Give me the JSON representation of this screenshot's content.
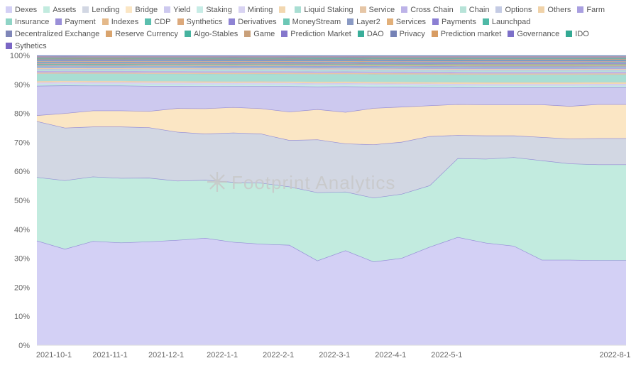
{
  "watermark": "Footprint Analytics",
  "chart_data": {
    "type": "area",
    "stacked": true,
    "percent": true,
    "legend_position": "top",
    "grid": false,
    "ylim": [
      0,
      100
    ],
    "y_ticks": [
      "0%",
      "10%",
      "20%",
      "30%",
      "40%",
      "50%",
      "60%",
      "70%",
      "80%",
      "90%",
      "100%"
    ],
    "x": [
      "2021-10-1",
      "2021-10-15",
      "2021-11-1",
      "2021-11-15",
      "2021-12-1",
      "2021-12-15",
      "2022-1-1",
      "2022-1-15",
      "2022-2-1",
      "2022-2-15",
      "2022-3-1",
      "2022-3-15",
      "2022-4-1",
      "2022-4-15",
      "2022-5-1",
      "2022-5-15",
      "2022-6-1",
      "2022-6-15",
      "2022-7-1",
      "2022-7-15",
      "2022-8-1",
      "2022-8-15"
    ],
    "x_ticks": [
      "2021-10-1",
      "2021-11-1",
      "2021-12-1",
      "2022-1-1",
      "2022-2-1",
      "2022-3-1",
      "2022-4-1",
      "2022-5-1",
      "2022-8-1"
    ],
    "series": [
      {
        "name": "Dexes",
        "color": "#d3d0f5",
        "values": [
          35.5,
          33,
          35.5,
          35,
          35,
          35.5,
          36,
          34.5,
          34,
          33.5,
          28,
          31.5,
          27.5,
          28.5,
          32,
          35,
          33,
          32,
          27.5,
          27.5,
          27.5,
          27.5
        ]
      },
      {
        "name": "Assets",
        "color": "#c2ebdf",
        "values": [
          21.5,
          23.5,
          22,
          22,
          21.5,
          20,
          19.5,
          20,
          20.5,
          19.5,
          22.5,
          19.5,
          21,
          21,
          20,
          25.5,
          27,
          28.5,
          32,
          31,
          31,
          31
        ]
      },
      {
        "name": "Lending",
        "color": "#d2d7e3",
        "values": [
          19,
          18,
          17,
          17.5,
          17,
          16.5,
          15.5,
          16.5,
          16.5,
          15.5,
          17.5,
          16,
          17.5,
          17,
          16,
          7.5,
          7.5,
          7,
          7.5,
          8,
          8.5,
          8.5
        ]
      },
      {
        "name": "Bridge",
        "color": "#fbe6c4",
        "values": [
          2,
          5,
          5.5,
          5.5,
          5.5,
          8,
          8.5,
          8.5,
          8.5,
          9.5,
          10,
          10.5,
          12,
          11.5,
          10,
          10,
          10,
          10,
          10.5,
          10.5,
          11,
          11
        ]
      },
      {
        "name": "Yield",
        "color": "#cdc9ef",
        "values": [
          10,
          9.5,
          8.5,
          8.5,
          8.5,
          7.5,
          7.5,
          7,
          7.5,
          8.5,
          7.5,
          8.5,
          7,
          6.5,
          6,
          5.5,
          5.5,
          5.5,
          5.5,
          6,
          5.5,
          5.5
        ]
      },
      {
        "name": "Staking",
        "color": "#c7ece6",
        "values": [
          0.6,
          0.6,
          0.6,
          0.6,
          0.6,
          0.6,
          0.6,
          0.6,
          0.6,
          0.6,
          0.6,
          0.6,
          0.6,
          0.6,
          0.6,
          0.6,
          0.6,
          0.6,
          0.6,
          0.6,
          0.6,
          0.6
        ]
      },
      {
        "name": "Minting",
        "color": "#d8d3f2",
        "values": [
          0.5,
          0.5,
          0.5,
          0.5,
          0.5,
          0.5,
          0.5,
          0.5,
          0.5,
          0.5,
          0.5,
          0.5,
          0.5,
          0.5,
          0.5,
          0.5,
          0.5,
          0.5,
          0.5,
          0.5,
          0.5,
          0.5
        ]
      },
      {
        "name": "",
        "color": "#f2d7b0",
        "values": [
          0.5,
          0.5,
          0.5,
          0.5,
          0.5,
          0.5,
          0.5,
          0.5,
          0.5,
          0.5,
          0.5,
          0.5,
          0.5,
          0.5,
          0.5,
          0.5,
          0.5,
          0.5,
          0.5,
          0.5,
          0.5,
          0.5
        ]
      },
      {
        "name": "Liquid Staking",
        "color": "#a9ded3",
        "values": [
          2.5,
          2.5,
          2.5,
          2.5,
          2.5,
          2.5,
          2.5,
          2.5,
          2.5,
          2.5,
          2.5,
          2.5,
          2.5,
          2.5,
          2.5,
          2.5,
          2.5,
          2.5,
          2.5,
          2.5,
          2.5,
          2.5
        ]
      },
      {
        "name": "Service",
        "color": "#e6c6a6",
        "values": [
          0.4,
          0.4,
          0.4,
          0.4,
          0.4,
          0.4,
          0.4,
          0.4,
          0.4,
          0.4,
          0.4,
          0.4,
          0.4,
          0.4,
          0.4,
          0.4,
          0.4,
          0.4,
          0.4,
          0.4,
          0.4,
          0.4
        ]
      },
      {
        "name": "Cross Chain",
        "color": "#bdb3e8",
        "values": [
          0.5,
          0.5,
          0.5,
          0.5,
          0.5,
          0.5,
          0.5,
          0.5,
          0.5,
          0.5,
          0.5,
          0.5,
          0.5,
          0.5,
          0.5,
          0.5,
          0.5,
          0.5,
          0.5,
          0.5,
          0.5,
          0.5
        ]
      },
      {
        "name": "Chain",
        "color": "#b7e3d8",
        "values": [
          0.4,
          0.4,
          0.4,
          0.4,
          0.4,
          0.4,
          0.4,
          0.4,
          0.4,
          0.4,
          0.4,
          0.4,
          0.4,
          0.4,
          0.4,
          0.4,
          0.4,
          0.4,
          0.4,
          0.4,
          0.4,
          0.4
        ]
      },
      {
        "name": "Options",
        "color": "#c4cbe4",
        "values": [
          0.3,
          0.3,
          0.3,
          0.3,
          0.3,
          0.3,
          0.3,
          0.3,
          0.3,
          0.3,
          0.3,
          0.3,
          0.3,
          0.3,
          0.3,
          0.3,
          0.3,
          0.3,
          0.3,
          0.3,
          0.3,
          0.3
        ]
      },
      {
        "name": "Others",
        "color": "#f0d2a8",
        "values": [
          0.3,
          0.3,
          0.3,
          0.3,
          0.3,
          0.3,
          0.3,
          0.3,
          0.3,
          0.3,
          0.3,
          0.3,
          0.3,
          0.3,
          0.3,
          0.3,
          0.3,
          0.3,
          0.3,
          0.3,
          0.3,
          0.3
        ]
      },
      {
        "name": "Farm",
        "color": "#a99fe0",
        "values": [
          0.3,
          0.3,
          0.3,
          0.3,
          0.3,
          0.3,
          0.3,
          0.3,
          0.3,
          0.3,
          0.3,
          0.3,
          0.3,
          0.3,
          0.3,
          0.3,
          0.3,
          0.3,
          0.3,
          0.3,
          0.3,
          0.3
        ]
      },
      {
        "name": "Insurance",
        "color": "#8fd4c6",
        "values": [
          0.3,
          0.3,
          0.3,
          0.3,
          0.3,
          0.3,
          0.3,
          0.3,
          0.3,
          0.3,
          0.3,
          0.3,
          0.3,
          0.3,
          0.3,
          0.3,
          0.3,
          0.3,
          0.3,
          0.3,
          0.3,
          0.3
        ]
      },
      {
        "name": "Payment",
        "color": "#9a8fd8",
        "values": [
          0.2,
          0.2,
          0.2,
          0.2,
          0.2,
          0.2,
          0.2,
          0.2,
          0.2,
          0.2,
          0.2,
          0.2,
          0.2,
          0.2,
          0.2,
          0.2,
          0.2,
          0.2,
          0.2,
          0.2,
          0.2,
          0.2
        ]
      },
      {
        "name": "Indexes",
        "color": "#e4b98a",
        "values": [
          0.3,
          0.3,
          0.3,
          0.3,
          0.3,
          0.3,
          0.3,
          0.3,
          0.3,
          0.3,
          0.3,
          0.3,
          0.3,
          0.3,
          0.3,
          0.3,
          0.3,
          0.3,
          0.3,
          0.3,
          0.3,
          0.3
        ]
      },
      {
        "name": "CDP",
        "color": "#5bbfae",
        "values": [
          0.3,
          0.3,
          0.3,
          0.3,
          0.3,
          0.3,
          0.3,
          0.3,
          0.3,
          0.3,
          0.3,
          0.3,
          0.3,
          0.3,
          0.3,
          0.3,
          0.3,
          0.3,
          0.3,
          0.3,
          0.3,
          0.3
        ]
      },
      {
        "name": "Synthetics",
        "color": "#dca97c",
        "values": [
          0.2,
          0.2,
          0.2,
          0.2,
          0.2,
          0.2,
          0.2,
          0.2,
          0.2,
          0.2,
          0.2,
          0.2,
          0.2,
          0.2,
          0.2,
          0.2,
          0.2,
          0.2,
          0.2,
          0.2,
          0.2,
          0.2
        ]
      },
      {
        "name": "Derivatives",
        "color": "#8f84d4",
        "values": [
          0.2,
          0.2,
          0.2,
          0.2,
          0.2,
          0.2,
          0.2,
          0.2,
          0.2,
          0.2,
          0.2,
          0.2,
          0.2,
          0.2,
          0.2,
          0.2,
          0.2,
          0.2,
          0.2,
          0.2,
          0.2,
          0.2
        ]
      },
      {
        "name": "MoneyStream",
        "color": "#6cc7b5",
        "values": [
          0.2,
          0.2,
          0.2,
          0.2,
          0.2,
          0.2,
          0.2,
          0.2,
          0.2,
          0.2,
          0.2,
          0.2,
          0.2,
          0.2,
          0.2,
          0.2,
          0.2,
          0.2,
          0.2,
          0.2,
          0.2,
          0.2
        ]
      },
      {
        "name": "Layer2",
        "color": "#8a9ac4",
        "values": [
          0.2,
          0.2,
          0.2,
          0.2,
          0.2,
          0.2,
          0.2,
          0.2,
          0.2,
          0.2,
          0.2,
          0.2,
          0.2,
          0.2,
          0.2,
          0.2,
          0.2,
          0.2,
          0.2,
          0.2,
          0.2,
          0.2
        ]
      },
      {
        "name": "Services",
        "color": "#e2b07a",
        "values": [
          0.2,
          0.2,
          0.2,
          0.2,
          0.2,
          0.2,
          0.2,
          0.2,
          0.2,
          0.2,
          0.2,
          0.2,
          0.2,
          0.2,
          0.2,
          0.2,
          0.2,
          0.2,
          0.2,
          0.2,
          0.2,
          0.2
        ]
      },
      {
        "name": "Payments",
        "color": "#8b7fd3",
        "values": [
          0.2,
          0.2,
          0.2,
          0.2,
          0.2,
          0.2,
          0.2,
          0.2,
          0.2,
          0.2,
          0.2,
          0.2,
          0.2,
          0.2,
          0.2,
          0.2,
          0.2,
          0.2,
          0.2,
          0.2,
          0.2,
          0.2
        ]
      },
      {
        "name": "Launchpad",
        "color": "#4fb9a6",
        "values": [
          0.2,
          0.2,
          0.2,
          0.2,
          0.2,
          0.2,
          0.2,
          0.2,
          0.2,
          0.2,
          0.2,
          0.2,
          0.2,
          0.2,
          0.2,
          0.2,
          0.2,
          0.2,
          0.2,
          0.2,
          0.2,
          0.2
        ]
      },
      {
        "name": "Decentralized Exchange",
        "color": "#7f86b8",
        "values": [
          0.2,
          0.2,
          0.2,
          0.2,
          0.2,
          0.2,
          0.2,
          0.2,
          0.2,
          0.2,
          0.2,
          0.2,
          0.2,
          0.2,
          0.2,
          0.2,
          0.2,
          0.2,
          0.2,
          0.2,
          0.2,
          0.2
        ]
      },
      {
        "name": "Reserve Currency",
        "color": "#d9a46e",
        "values": [
          0.2,
          0.2,
          0.2,
          0.2,
          0.2,
          0.2,
          0.2,
          0.2,
          0.2,
          0.2,
          0.2,
          0.2,
          0.2,
          0.2,
          0.2,
          0.2,
          0.2,
          0.2,
          0.2,
          0.2,
          0.2,
          0.2
        ]
      },
      {
        "name": "Algo-Stables",
        "color": "#46b39f",
        "values": [
          0.2,
          0.2,
          0.2,
          0.2,
          0.2,
          0.2,
          0.2,
          0.2,
          0.2,
          0.2,
          0.2,
          0.2,
          0.2,
          0.2,
          0.2,
          0.2,
          0.2,
          0.2,
          0.2,
          0.2,
          0.2,
          0.2
        ]
      },
      {
        "name": "Game",
        "color": "#c9a07a",
        "values": [
          0.2,
          0.2,
          0.2,
          0.2,
          0.2,
          0.2,
          0.2,
          0.2,
          0.2,
          0.2,
          0.2,
          0.2,
          0.2,
          0.2,
          0.2,
          0.2,
          0.2,
          0.2,
          0.2,
          0.2,
          0.2,
          0.2
        ]
      },
      {
        "name": "Prediction Market",
        "color": "#8577cc",
        "values": [
          0.1,
          0.1,
          0.1,
          0.1,
          0.1,
          0.1,
          0.1,
          0.1,
          0.1,
          0.1,
          0.1,
          0.1,
          0.1,
          0.1,
          0.1,
          0.1,
          0.1,
          0.1,
          0.1,
          0.1,
          0.1,
          0.1
        ]
      },
      {
        "name": "DAO",
        "color": "#3aae9a",
        "values": [
          0.1,
          0.1,
          0.1,
          0.1,
          0.1,
          0.1,
          0.1,
          0.1,
          0.1,
          0.1,
          0.1,
          0.1,
          0.1,
          0.1,
          0.1,
          0.1,
          0.1,
          0.1,
          0.1,
          0.1,
          0.1,
          0.1
        ]
      },
      {
        "name": "Privacy",
        "color": "#7582b6",
        "values": [
          0.1,
          0.1,
          0.1,
          0.1,
          0.1,
          0.1,
          0.1,
          0.1,
          0.1,
          0.1,
          0.1,
          0.1,
          0.1,
          0.1,
          0.1,
          0.1,
          0.1,
          0.1,
          0.1,
          0.1,
          0.1,
          0.1
        ]
      },
      {
        "name": "Prediction market",
        "color": "#d89c62",
        "values": [
          0.1,
          0.1,
          0.1,
          0.1,
          0.1,
          0.1,
          0.1,
          0.1,
          0.1,
          0.1,
          0.1,
          0.1,
          0.1,
          0.1,
          0.1,
          0.1,
          0.1,
          0.1,
          0.1,
          0.1,
          0.1,
          0.1
        ]
      },
      {
        "name": "Governance",
        "color": "#7d70c9",
        "values": [
          0.1,
          0.1,
          0.1,
          0.1,
          0.1,
          0.1,
          0.1,
          0.1,
          0.1,
          0.1,
          0.1,
          0.1,
          0.1,
          0.1,
          0.1,
          0.1,
          0.1,
          0.1,
          0.1,
          0.1,
          0.1,
          0.1
        ]
      },
      {
        "name": "IDO",
        "color": "#33a993",
        "values": [
          0.1,
          0.1,
          0.1,
          0.1,
          0.1,
          0.1,
          0.1,
          0.1,
          0.1,
          0.1,
          0.1,
          0.1,
          0.1,
          0.1,
          0.1,
          0.1,
          0.1,
          0.1,
          0.1,
          0.1,
          0.1,
          0.1
        ]
      },
      {
        "name": "Sythetics",
        "color": "#7a66c4",
        "values": [
          0.1,
          0.1,
          0.1,
          0.1,
          0.1,
          0.1,
          0.1,
          0.1,
          0.1,
          0.1,
          0.1,
          0.1,
          0.1,
          0.1,
          0.1,
          0.1,
          0.1,
          0.1,
          0.1,
          0.1,
          0.1,
          0.1
        ]
      }
    ]
  }
}
